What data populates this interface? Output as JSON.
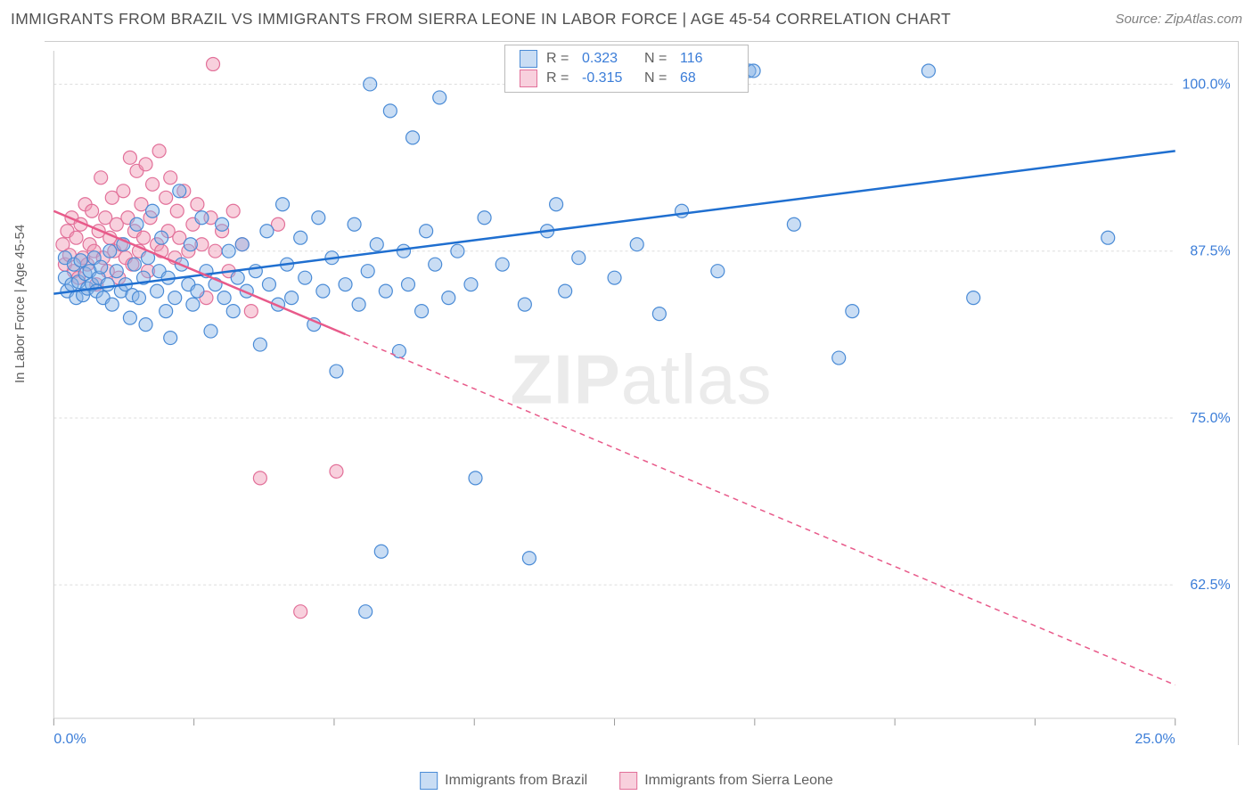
{
  "title": "IMMIGRANTS FROM BRAZIL VS IMMIGRANTS FROM SIERRA LEONE IN LABOR FORCE | AGE 45-54 CORRELATION CHART",
  "source": "Source: ZipAtlas.com",
  "ylabel": "In Labor Force | Age 45-54",
  "watermark_bold": "ZIP",
  "watermark_light": "atlas",
  "chart": {
    "type": "scatter",
    "xlim": [
      0,
      25
    ],
    "ylim": [
      52.5,
      102.5
    ],
    "x_ticks": [
      0,
      3.125,
      6.25,
      9.375,
      12.5,
      15.625,
      18.75,
      21.875,
      25
    ],
    "x_tick_labels": {
      "0": "0.0%",
      "25": "25.0%"
    },
    "y_ticks": [
      62.5,
      75.0,
      87.5,
      100.0
    ],
    "y_tick_labels": [
      "62.5%",
      "75.0%",
      "87.5%",
      "100.0%"
    ],
    "grid_color": "#dddddd",
    "grid_dash": "3,3",
    "background_color": "#ffffff",
    "marker_radius": 7.5,
    "marker_stroke_width": 1.2,
    "trend_line_width": 2.5,
    "series": [
      {
        "name": "Immigrants from Brazil",
        "fill": "rgba(135,180,230,0.45)",
        "stroke": "#4a8bd6",
        "trend_color": "#1f6fd0",
        "trend": {
          "x0": 0,
          "y0": 84.3,
          "x1": 25,
          "y1": 95.0,
          "dash": null
        },
        "R": "0.323",
        "N": "116",
        "points": [
          [
            0.25,
            85.5
          ],
          [
            0.25,
            87.0
          ],
          [
            0.3,
            84.5
          ],
          [
            0.4,
            85.0
          ],
          [
            0.45,
            86.5
          ],
          [
            0.5,
            84.0
          ],
          [
            0.55,
            85.2
          ],
          [
            0.6,
            86.8
          ],
          [
            0.65,
            84.2
          ],
          [
            0.7,
            85.8
          ],
          [
            0.75,
            84.7
          ],
          [
            0.8,
            86.0
          ],
          [
            0.85,
            85.0
          ],
          [
            0.9,
            87.0
          ],
          [
            0.95,
            84.5
          ],
          [
            1.0,
            85.5
          ],
          [
            1.05,
            86.3
          ],
          [
            1.1,
            84.0
          ],
          [
            1.2,
            85.0
          ],
          [
            1.25,
            87.5
          ],
          [
            1.3,
            83.5
          ],
          [
            1.4,
            86.0
          ],
          [
            1.5,
            84.5
          ],
          [
            1.55,
            88.0
          ],
          [
            1.6,
            85.0
          ],
          [
            1.7,
            82.5
          ],
          [
            1.75,
            84.2
          ],
          [
            1.8,
            86.5
          ],
          [
            1.85,
            89.5
          ],
          [
            1.9,
            84.0
          ],
          [
            2.0,
            85.5
          ],
          [
            2.05,
            82.0
          ],
          [
            2.1,
            87.0
          ],
          [
            2.2,
            90.5
          ],
          [
            2.3,
            84.5
          ],
          [
            2.35,
            86.0
          ],
          [
            2.4,
            88.5
          ],
          [
            2.5,
            83.0
          ],
          [
            2.55,
            85.5
          ],
          [
            2.6,
            81.0
          ],
          [
            2.7,
            84.0
          ],
          [
            2.8,
            92.0
          ],
          [
            2.85,
            86.5
          ],
          [
            3.0,
            85.0
          ],
          [
            3.05,
            88.0
          ],
          [
            3.1,
            83.5
          ],
          [
            3.2,
            84.5
          ],
          [
            3.3,
            90.0
          ],
          [
            3.4,
            86.0
          ],
          [
            3.5,
            81.5
          ],
          [
            3.6,
            85.0
          ],
          [
            3.75,
            89.5
          ],
          [
            3.8,
            84.0
          ],
          [
            3.9,
            87.5
          ],
          [
            4.0,
            83.0
          ],
          [
            4.1,
            85.5
          ],
          [
            4.2,
            88.0
          ],
          [
            4.3,
            84.5
          ],
          [
            4.5,
            86.0
          ],
          [
            4.6,
            80.5
          ],
          [
            4.75,
            89.0
          ],
          [
            4.8,
            85.0
          ],
          [
            5.0,
            83.5
          ],
          [
            5.1,
            91.0
          ],
          [
            5.2,
            86.5
          ],
          [
            5.3,
            84.0
          ],
          [
            5.5,
            88.5
          ],
          [
            5.6,
            85.5
          ],
          [
            5.8,
            82.0
          ],
          [
            5.9,
            90.0
          ],
          [
            6.0,
            84.5
          ],
          [
            6.2,
            87.0
          ],
          [
            6.3,
            78.5
          ],
          [
            6.5,
            85.0
          ],
          [
            6.7,
            89.5
          ],
          [
            6.8,
            83.5
          ],
          [
            6.95,
            60.5
          ],
          [
            7.0,
            86.0
          ],
          [
            7.05,
            100.0
          ],
          [
            7.2,
            88.0
          ],
          [
            7.3,
            65.0
          ],
          [
            7.4,
            84.5
          ],
          [
            7.5,
            98.0
          ],
          [
            7.7,
            80.0
          ],
          [
            7.8,
            87.5
          ],
          [
            7.9,
            85.0
          ],
          [
            8.0,
            96.0
          ],
          [
            8.2,
            83.0
          ],
          [
            8.3,
            89.0
          ],
          [
            8.5,
            86.5
          ],
          [
            8.6,
            99.0
          ],
          [
            8.8,
            84.0
          ],
          [
            9.0,
            87.5
          ],
          [
            9.3,
            85.0
          ],
          [
            9.4,
            70.5
          ],
          [
            9.6,
            90.0
          ],
          [
            10.0,
            86.5
          ],
          [
            10.5,
            83.5
          ],
          [
            10.6,
            64.5
          ],
          [
            11.0,
            89.0
          ],
          [
            11.2,
            91.0
          ],
          [
            11.4,
            84.5
          ],
          [
            11.7,
            87.0
          ],
          [
            12.5,
            85.5
          ],
          [
            13.0,
            88.0
          ],
          [
            13.5,
            82.8
          ],
          [
            14.0,
            90.5
          ],
          [
            14.8,
            86.0
          ],
          [
            15.5,
            101.0
          ],
          [
            15.6,
            101.0
          ],
          [
            16.5,
            89.5
          ],
          [
            17.5,
            79.5
          ],
          [
            17.8,
            83.0
          ],
          [
            19.5,
            101.0
          ],
          [
            20.5,
            84.0
          ],
          [
            23.5,
            88.5
          ]
        ]
      },
      {
        "name": "Immigrants from Sierra Leone",
        "fill": "rgba(240,150,180,0.45)",
        "stroke": "#e27099",
        "trend_color": "#e85a8a",
        "trend": {
          "x0": 0,
          "y0": 90.5,
          "x1": 25,
          "y1": 55.0,
          "dash_after": 6.5,
          "dash": "6,5"
        },
        "R": "-0.315",
        "N": "68",
        "points": [
          [
            0.2,
            88.0
          ],
          [
            0.25,
            86.5
          ],
          [
            0.3,
            89.0
          ],
          [
            0.35,
            87.2
          ],
          [
            0.4,
            90.0
          ],
          [
            0.45,
            86.0
          ],
          [
            0.5,
            88.5
          ],
          [
            0.55,
            85.5
          ],
          [
            0.6,
            89.5
          ],
          [
            0.65,
            87.0
          ],
          [
            0.7,
            91.0
          ],
          [
            0.75,
            86.5
          ],
          [
            0.8,
            88.0
          ],
          [
            0.85,
            90.5
          ],
          [
            0.9,
            87.5
          ],
          [
            0.95,
            85.0
          ],
          [
            1.0,
            89.0
          ],
          [
            1.05,
            93.0
          ],
          [
            1.1,
            87.0
          ],
          [
            1.15,
            90.0
          ],
          [
            1.2,
            86.0
          ],
          [
            1.25,
            88.5
          ],
          [
            1.3,
            91.5
          ],
          [
            1.35,
            87.5
          ],
          [
            1.4,
            89.5
          ],
          [
            1.45,
            85.5
          ],
          [
            1.5,
            88.0
          ],
          [
            1.55,
            92.0
          ],
          [
            1.6,
            87.0
          ],
          [
            1.65,
            90.0
          ],
          [
            1.7,
            94.5
          ],
          [
            1.75,
            86.5
          ],
          [
            1.8,
            89.0
          ],
          [
            1.85,
            93.5
          ],
          [
            1.9,
            87.5
          ],
          [
            1.95,
            91.0
          ],
          [
            2.0,
            88.5
          ],
          [
            2.05,
            94.0
          ],
          [
            2.1,
            86.0
          ],
          [
            2.15,
            90.0
          ],
          [
            2.2,
            92.5
          ],
          [
            2.3,
            88.0
          ],
          [
            2.35,
            95.0
          ],
          [
            2.4,
            87.5
          ],
          [
            2.5,
            91.5
          ],
          [
            2.55,
            89.0
          ],
          [
            2.6,
            93.0
          ],
          [
            2.7,
            87.0
          ],
          [
            2.75,
            90.5
          ],
          [
            2.8,
            88.5
          ],
          [
            2.9,
            92.0
          ],
          [
            3.0,
            87.5
          ],
          [
            3.1,
            89.5
          ],
          [
            3.2,
            91.0
          ],
          [
            3.3,
            88.0
          ],
          [
            3.4,
            84.0
          ],
          [
            3.5,
            90.0
          ],
          [
            3.55,
            101.5
          ],
          [
            3.6,
            87.5
          ],
          [
            3.75,
            89.0
          ],
          [
            3.9,
            86.0
          ],
          [
            4.0,
            90.5
          ],
          [
            4.2,
            88.0
          ],
          [
            4.4,
            83.0
          ],
          [
            4.6,
            70.5
          ],
          [
            5.0,
            89.5
          ],
          [
            5.5,
            60.5
          ],
          [
            6.3,
            71.0
          ]
        ]
      }
    ]
  }
}
